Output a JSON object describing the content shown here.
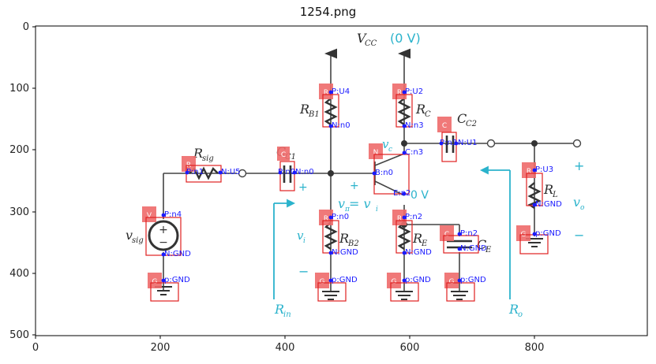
{
  "figure": {
    "title": "1254.png",
    "x_ticks": [
      "0",
      "200",
      "400",
      "600",
      "800"
    ],
    "y_ticks": [
      "0",
      "100",
      "200",
      "300",
      "400",
      "500"
    ]
  },
  "circuit_labels": {
    "vcc": "V",
    "vcc_sub": "CC",
    "vcc_value": "(0 V)",
    "rsig": "R",
    "rsig_sub": "sig",
    "rb1": "R",
    "rb1_sub": "B1",
    "rb2": "R",
    "rb2_sub": "B2",
    "rc": "R",
    "rc_sub": "C",
    "re": "R",
    "re_sub": "E",
    "rl": "R",
    "rl_sub": "L",
    "cc1": "C",
    "cc1_sub": "C1",
    "cc2": "C",
    "cc2_sub": "C2",
    "ce": "C",
    "ce_sub": "E",
    "vsig": "v",
    "vsig_sub": "sig",
    "vi": "v",
    "vi_sub": "i",
    "vpi_eq": "v",
    "vpi_sub": "π",
    "vpi_rest": " = v",
    "vpi_rest_sub": "i",
    "vc": "v",
    "vc_sub": "c",
    "vo": "v",
    "vo_sub": "o",
    "zero_v": "0 V",
    "rin": "R",
    "rin_sub": "in",
    "ro": "R",
    "ro_sub": "o",
    "plus": "+",
    "minus": "−"
  },
  "components": [
    {
      "badge": "R",
      "p1": "P:U4",
      "p2": "N:n0"
    },
    {
      "badge": "R",
      "p1": "P:U2",
      "p2": "N:n3"
    },
    {
      "badge": "C",
      "p1": "P:n3",
      "p2": "N:U1"
    },
    {
      "badge": "N",
      "p1": "C:n3",
      "p2": "B:n0",
      "p3": "E:n2"
    },
    {
      "badge": "R",
      "p1": "P:n1",
      "p2": "N:U5"
    },
    {
      "badge": "C",
      "p1": "P:n0",
      "p2": "N:n0"
    },
    {
      "badge": "R",
      "p1": "P:U3",
      "p2": "N:GND"
    },
    {
      "badge": "V",
      "p1": "P:n4",
      "p2": "N:GND"
    },
    {
      "badge": "R",
      "p1": "P:n0",
      "p2": "N:GND"
    },
    {
      "badge": "R",
      "p1": "P:n2",
      "p2": "N:GND"
    },
    {
      "badge": "C",
      "p1": "P:n2",
      "p2": "N:GND"
    },
    {
      "badge": "G",
      "p1": "p:GND"
    },
    {
      "badge": "G",
      "p1": "p:GND"
    },
    {
      "badge": "G",
      "p1": "p:GND"
    },
    {
      "badge": "G",
      "p1": "p:GND"
    },
    {
      "badge": "G",
      "p1": "p:GND"
    },
    {
      "badge": "G",
      "p1": "p:GND"
    }
  ],
  "colors": {
    "annotation_box": "#e02020",
    "annotation_text": "#1a1aff",
    "badge_fill": "#ee6a6a",
    "circuit_line": "#444444",
    "cyan": "#2bb3cc"
  }
}
